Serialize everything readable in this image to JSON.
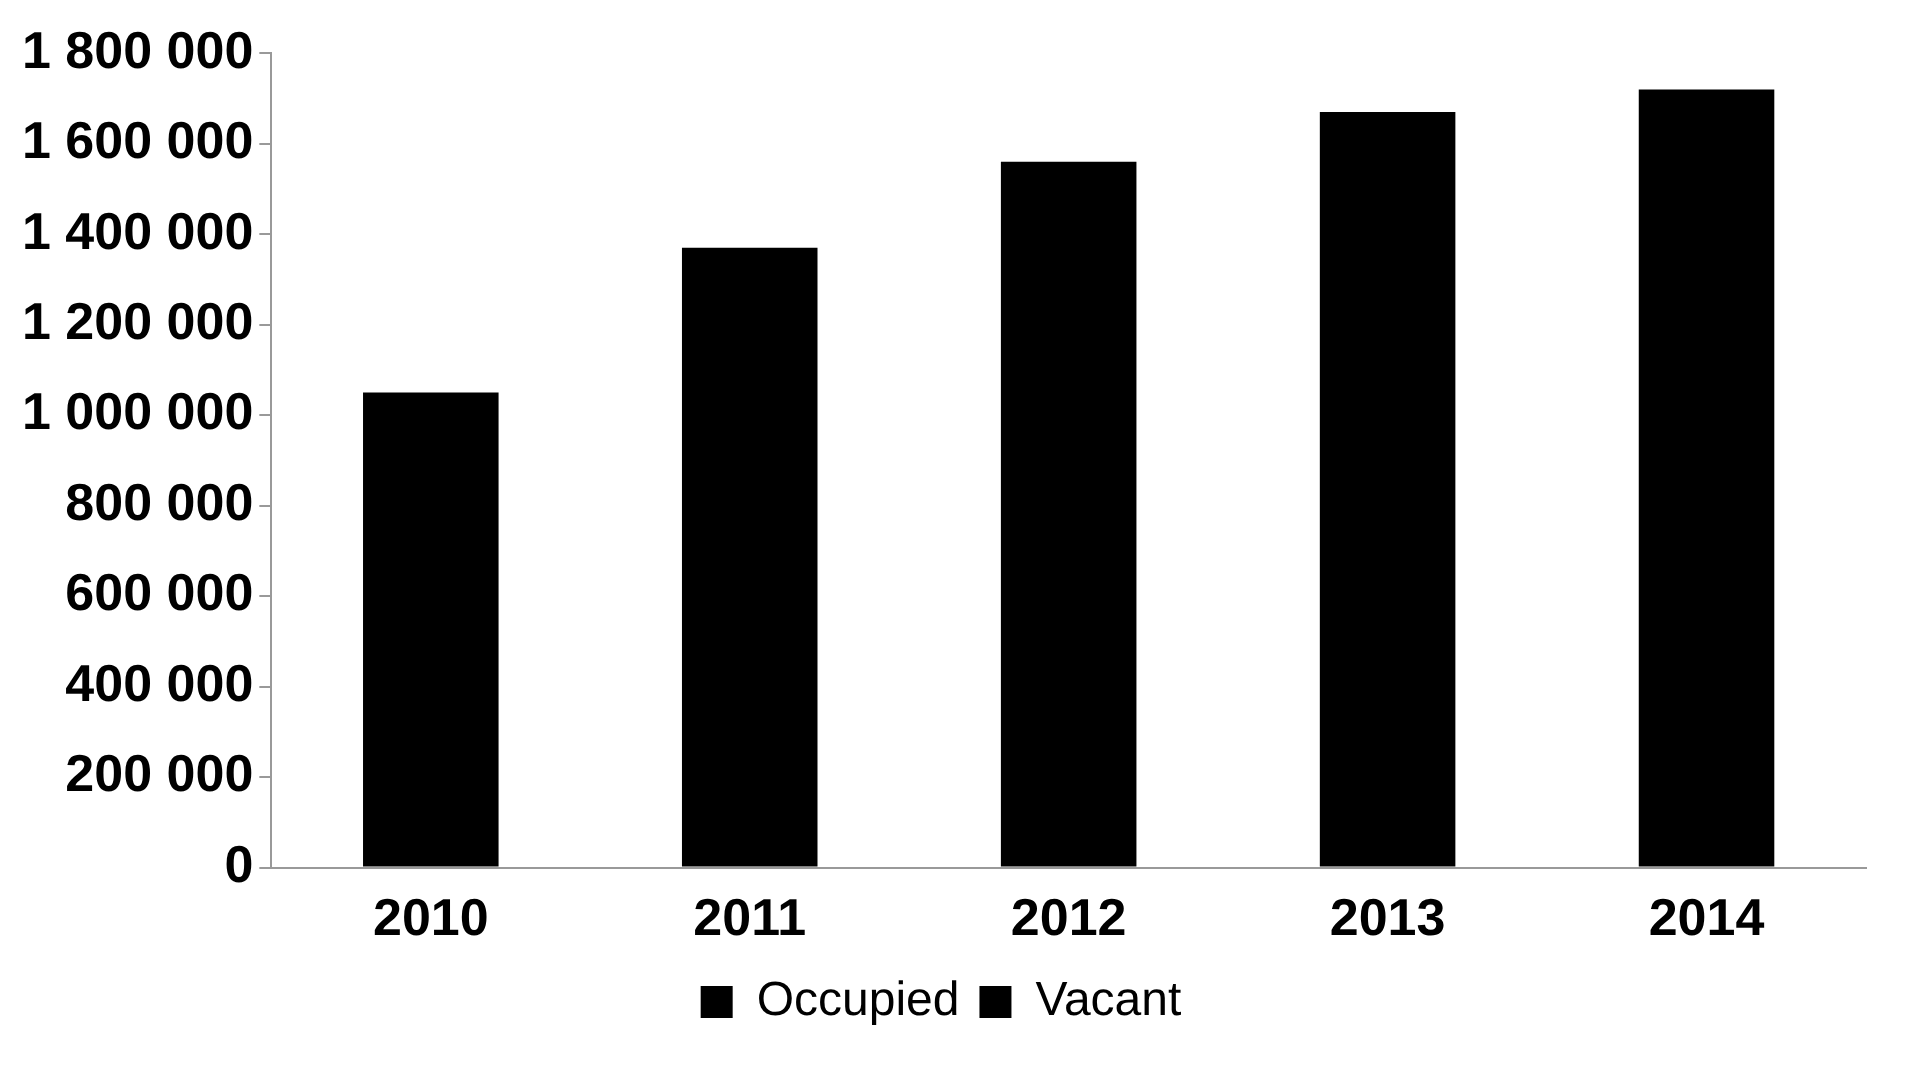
{
  "chart_data": {
    "type": "bar",
    "stacked": true,
    "categories": [
      "2010",
      "2011",
      "2012",
      "2013",
      "2014"
    ],
    "series": [
      {
        "name": "Occupied",
        "color": "#000000",
        "values": [
          1050000,
          1370000,
          1560000,
          1670000,
          1720000
        ]
      },
      {
        "name": "Vacant",
        "color": "#000000",
        "values": [
          null,
          null,
          null,
          null,
          null
        ]
      }
    ],
    "ylim": [
      0,
      1800000
    ],
    "yticks": [
      {
        "value": 0,
        "label": "0"
      },
      {
        "value": 200000,
        "label": "200 000"
      },
      {
        "value": 400000,
        "label": "400 000"
      },
      {
        "value": 600000,
        "label": "600 000"
      },
      {
        "value": 800000,
        "label": "800 000"
      },
      {
        "value": 1000000,
        "label": "1 000 000"
      },
      {
        "value": 1200000,
        "label": "1 200 000"
      },
      {
        "value": 1400000,
        "label": "1 400 000"
      },
      {
        "value": 1600000,
        "label": "1 600 000"
      },
      {
        "value": 1800000,
        "label": "1 800 000"
      }
    ],
    "grid": false,
    "legend": "bottom"
  }
}
